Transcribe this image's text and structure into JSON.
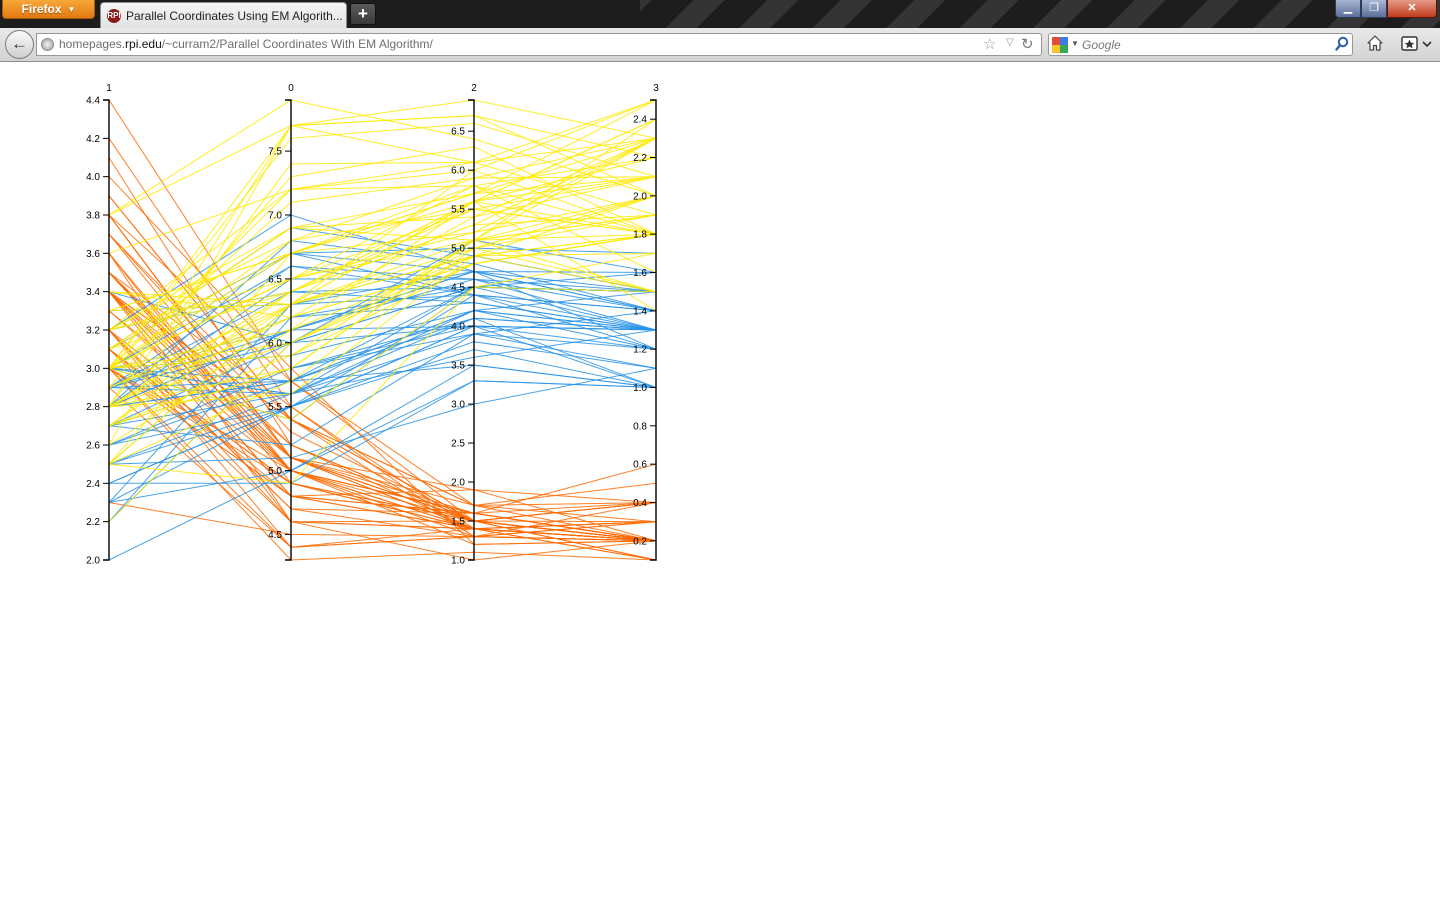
{
  "browser": {
    "menu_label": "Firefox",
    "tab": {
      "title": "Parallel Coordinates Using EM Algorith...",
      "favicon_text": "RPI"
    },
    "new_tab_label": "+",
    "window_controls": {
      "minimize": "▁",
      "maximize": "❐",
      "close": "✕"
    },
    "url": {
      "prefix": "homepages.",
      "host": "rpi.edu",
      "path": "/~curram2/Parallel Coordinates With EM Algorithm/"
    },
    "search": {
      "placeholder": "Google"
    },
    "icons": {
      "back": "back-arrow-icon",
      "identity": "globe-icon",
      "bookmark": "star-icon",
      "reload": "reload-icon",
      "search": "magnifier-icon",
      "home": "home-icon",
      "bookmarks": "bookmarks-icon"
    },
    "colors": {
      "titlebar": "#1d1d1d",
      "menu": "#e88a1e",
      "close": "#c13b1d"
    }
  },
  "chart_data": {
    "type": "parallel-coordinates",
    "axes": [
      {
        "label": "1",
        "min": 2.0,
        "max": 4.4,
        "ticks": [
          "2.0",
          "2.2",
          "2.4",
          "2.6",
          "2.8",
          "3.0",
          "3.2",
          "3.4",
          "3.6",
          "3.8",
          "4.0",
          "4.2",
          "4.4"
        ]
      },
      {
        "label": "0",
        "min": 4.3,
        "max": 7.9,
        "ticks": [
          "4.5",
          "5.0",
          "5.5",
          "6.0",
          "6.5",
          "7.0",
          "7.5"
        ]
      },
      {
        "label": "2",
        "min": 1.0,
        "max": 6.9,
        "ticks": [
          "1.0",
          "1.5",
          "2.0",
          "2.5",
          "3.0",
          "3.5",
          "4.0",
          "4.5",
          "5.0",
          "5.5",
          "6.0",
          "6.5"
        ]
      },
      {
        "label": "3",
        "min": 0.1,
        "max": 2.5,
        "ticks": [
          "0.2",
          "0.4",
          "0.6",
          "0.8",
          "1.0",
          "1.2",
          "1.4",
          "1.6",
          "1.8",
          "2.0",
          "2.2",
          "2.4"
        ]
      }
    ],
    "clusters": [
      {
        "color": "#ff6a00"
      },
      {
        "color": "#2893e8"
      },
      {
        "color": "#ffea00"
      }
    ],
    "records": [
      [
        3.5,
        5.1,
        1.4,
        0.2,
        0
      ],
      [
        3.0,
        4.9,
        1.4,
        0.2,
        0
      ],
      [
        3.2,
        4.7,
        1.3,
        0.2,
        0
      ],
      [
        3.1,
        4.6,
        1.5,
        0.2,
        0
      ],
      [
        3.6,
        5.0,
        1.4,
        0.2,
        0
      ],
      [
        3.9,
        5.4,
        1.7,
        0.4,
        0
      ],
      [
        3.4,
        4.6,
        1.4,
        0.3,
        0
      ],
      [
        3.4,
        5.0,
        1.5,
        0.2,
        0
      ],
      [
        2.9,
        4.4,
        1.4,
        0.2,
        0
      ],
      [
        3.1,
        4.9,
        1.5,
        0.1,
        0
      ],
      [
        3.7,
        5.4,
        1.5,
        0.2,
        0
      ],
      [
        3.4,
        4.8,
        1.6,
        0.2,
        0
      ],
      [
        3.0,
        4.8,
        1.4,
        0.1,
        0
      ],
      [
        3.0,
        4.3,
        1.1,
        0.1,
        0
      ],
      [
        4.0,
        5.8,
        1.2,
        0.2,
        0
      ],
      [
        4.4,
        5.7,
        1.5,
        0.4,
        0
      ],
      [
        3.9,
        5.4,
        1.3,
        0.4,
        0
      ],
      [
        3.5,
        5.1,
        1.4,
        0.3,
        0
      ],
      [
        3.8,
        5.7,
        1.7,
        0.3,
        0
      ],
      [
        3.8,
        5.1,
        1.5,
        0.3,
        0
      ],
      [
        3.4,
        5.4,
        1.7,
        0.2,
        0
      ],
      [
        3.7,
        5.1,
        1.5,
        0.4,
        0
      ],
      [
        3.6,
        4.6,
        1.0,
        0.2,
        0
      ],
      [
        3.3,
        5.1,
        1.7,
        0.5,
        0
      ],
      [
        3.4,
        4.8,
        1.9,
        0.2,
        0
      ],
      [
        3.0,
        5.0,
        1.6,
        0.2,
        0
      ],
      [
        3.4,
        5.0,
        1.6,
        0.4,
        0
      ],
      [
        3.5,
        5.2,
        1.5,
        0.2,
        0
      ],
      [
        3.4,
        5.2,
        1.4,
        0.2,
        0
      ],
      [
        3.2,
        4.7,
        1.6,
        0.2,
        0
      ],
      [
        3.1,
        4.8,
        1.6,
        0.2,
        0
      ],
      [
        3.4,
        5.4,
        1.5,
        0.4,
        0
      ],
      [
        4.1,
        5.2,
        1.5,
        0.1,
        0
      ],
      [
        4.2,
        5.5,
        1.4,
        0.2,
        0
      ],
      [
        3.1,
        4.9,
        1.5,
        0.2,
        0
      ],
      [
        3.2,
        5.0,
        1.2,
        0.2,
        0
      ],
      [
        3.5,
        5.5,
        1.3,
        0.2,
        0
      ],
      [
        3.6,
        4.9,
        1.4,
        0.1,
        0
      ],
      [
        3.0,
        4.4,
        1.3,
        0.2,
        0
      ],
      [
        3.4,
        5.1,
        1.5,
        0.2,
        0
      ],
      [
        3.5,
        5.0,
        1.3,
        0.3,
        0
      ],
      [
        2.3,
        4.5,
        1.3,
        0.3,
        0
      ],
      [
        3.2,
        4.4,
        1.3,
        0.2,
        0
      ],
      [
        3.5,
        5.0,
        1.6,
        0.6,
        0
      ],
      [
        3.8,
        5.1,
        1.9,
        0.4,
        0
      ],
      [
        3.0,
        4.8,
        1.4,
        0.3,
        0
      ],
      [
        3.8,
        5.1,
        1.6,
        0.2,
        0
      ],
      [
        3.2,
        4.6,
        1.4,
        0.2,
        0
      ],
      [
        3.7,
        5.3,
        1.5,
        0.2,
        0
      ],
      [
        3.3,
        5.0,
        1.4,
        0.2,
        0
      ],
      [
        3.2,
        7.0,
        4.7,
        1.4,
        1
      ],
      [
        3.2,
        6.4,
        4.5,
        1.5,
        1
      ],
      [
        3.1,
        6.9,
        4.9,
        1.5,
        1
      ],
      [
        2.3,
        5.5,
        4.0,
        1.3,
        1
      ],
      [
        2.8,
        6.5,
        4.6,
        1.5,
        1
      ],
      [
        2.8,
        5.7,
        4.5,
        1.3,
        1
      ],
      [
        3.3,
        6.3,
        4.7,
        1.6,
        1
      ],
      [
        2.4,
        4.9,
        3.3,
        1.0,
        1
      ],
      [
        2.9,
        6.6,
        4.6,
        1.3,
        1
      ],
      [
        2.7,
        5.2,
        3.9,
        1.4,
        1
      ],
      [
        2.0,
        5.0,
        3.5,
        1.0,
        1
      ],
      [
        3.0,
        5.9,
        4.2,
        1.5,
        1
      ],
      [
        2.2,
        6.0,
        4.0,
        1.0,
        1
      ],
      [
        2.9,
        6.1,
        4.7,
        1.4,
        1
      ],
      [
        2.9,
        5.6,
        3.6,
        1.3,
        1
      ],
      [
        3.1,
        6.7,
        4.4,
        1.4,
        1
      ],
      [
        3.0,
        5.6,
        4.5,
        1.5,
        1
      ],
      [
        2.7,
        5.8,
        4.1,
        1.0,
        1
      ],
      [
        2.2,
        6.2,
        4.5,
        1.5,
        1
      ],
      [
        2.5,
        5.6,
        3.9,
        1.1,
        1
      ],
      [
        2.8,
        6.1,
        4.0,
        1.3,
        1
      ],
      [
        2.5,
        6.3,
        4.9,
        1.5,
        1
      ],
      [
        2.8,
        6.1,
        4.7,
        1.2,
        1
      ],
      [
        2.9,
        6.4,
        4.3,
        1.3,
        1
      ],
      [
        3.0,
        6.6,
        4.4,
        1.4,
        1
      ],
      [
        2.8,
        6.8,
        4.8,
        1.4,
        1
      ],
      [
        3.0,
        6.7,
        5.0,
        1.7,
        1
      ],
      [
        2.9,
        6.0,
        4.5,
        1.5,
        1
      ],
      [
        2.6,
        5.7,
        3.5,
        1.0,
        1
      ],
      [
        2.4,
        5.5,
        3.8,
        1.1,
        1
      ],
      [
        2.4,
        5.5,
        3.7,
        1.0,
        1
      ],
      [
        2.7,
        5.8,
        3.9,
        1.2,
        1
      ],
      [
        2.7,
        6.0,
        5.1,
        1.6,
        1
      ],
      [
        3.0,
        5.4,
        4.5,
        1.5,
        1
      ],
      [
        3.4,
        6.0,
        4.5,
        1.6,
        1
      ],
      [
        3.1,
        6.7,
        4.7,
        1.5,
        1
      ],
      [
        2.3,
        6.3,
        4.4,
        1.3,
        1
      ],
      [
        3.0,
        5.6,
        4.1,
        1.3,
        1
      ],
      [
        2.5,
        5.5,
        4.0,
        1.3,
        1
      ],
      [
        2.6,
        5.5,
        4.4,
        1.2,
        1
      ],
      [
        3.0,
        6.1,
        4.6,
        1.4,
        1
      ],
      [
        2.6,
        5.8,
        4.0,
        1.2,
        1
      ],
      [
        2.3,
        5.0,
        3.3,
        1.0,
        1
      ],
      [
        2.7,
        5.6,
        4.2,
        1.3,
        1
      ],
      [
        3.0,
        5.7,
        4.2,
        1.2,
        1
      ],
      [
        2.9,
        5.7,
        4.2,
        1.3,
        1
      ],
      [
        2.9,
        6.2,
        4.3,
        1.3,
        1
      ],
      [
        2.5,
        5.1,
        3.0,
        1.1,
        1
      ],
      [
        2.8,
        5.7,
        4.1,
        1.3,
        1
      ],
      [
        3.3,
        6.3,
        6.0,
        2.5,
        2
      ],
      [
        2.7,
        5.8,
        5.1,
        1.9,
        2
      ],
      [
        3.0,
        7.1,
        5.9,
        2.1,
        2
      ],
      [
        2.9,
        6.3,
        5.6,
        1.8,
        2
      ],
      [
        3.0,
        6.5,
        5.8,
        2.2,
        2
      ],
      [
        3.0,
        7.6,
        6.6,
        2.1,
        2
      ],
      [
        2.5,
        4.9,
        4.5,
        1.7,
        2
      ],
      [
        2.9,
        7.3,
        6.3,
        1.8,
        2
      ],
      [
        2.5,
        6.7,
        5.8,
        1.8,
        2
      ],
      [
        3.6,
        7.2,
        6.1,
        2.5,
        2
      ],
      [
        3.2,
        6.5,
        5.1,
        2.0,
        2
      ],
      [
        2.7,
        6.4,
        5.3,
        1.9,
        2
      ],
      [
        3.0,
        6.8,
        5.5,
        2.1,
        2
      ],
      [
        2.5,
        5.7,
        5.0,
        2.0,
        2
      ],
      [
        2.8,
        5.8,
        5.1,
        2.4,
        2
      ],
      [
        3.2,
        6.4,
        5.3,
        2.3,
        2
      ],
      [
        3.0,
        6.5,
        5.5,
        1.8,
        2
      ],
      [
        3.8,
        7.7,
        6.7,
        2.2,
        2
      ],
      [
        2.6,
        7.7,
        6.9,
        2.3,
        2
      ],
      [
        2.2,
        6.0,
        5.0,
        1.5,
        2
      ],
      [
        3.2,
        6.9,
        5.7,
        2.3,
        2
      ],
      [
        2.8,
        5.6,
        4.9,
        2.0,
        2
      ],
      [
        2.8,
        7.7,
        6.7,
        2.0,
        2
      ],
      [
        2.7,
        6.3,
        4.9,
        1.8,
        2
      ],
      [
        3.3,
        6.7,
        5.7,
        2.1,
        2
      ],
      [
        3.2,
        7.2,
        6.0,
        1.8,
        2
      ],
      [
        2.8,
        6.2,
        4.8,
        1.8,
        2
      ],
      [
        3.0,
        6.1,
        4.9,
        1.8,
        2
      ],
      [
        2.8,
        6.4,
        5.6,
        2.1,
        2
      ],
      [
        3.0,
        7.2,
        5.8,
        1.6,
        2
      ],
      [
        2.8,
        7.4,
        6.1,
        1.9,
        2
      ],
      [
        3.8,
        7.9,
        6.4,
        2.0,
        2
      ],
      [
        2.8,
        6.4,
        5.6,
        2.2,
        2
      ],
      [
        2.8,
        6.3,
        5.1,
        1.5,
        2
      ],
      [
        2.6,
        6.1,
        5.6,
        1.4,
        2
      ],
      [
        3.0,
        7.7,
        6.1,
        2.3,
        2
      ],
      [
        3.4,
        6.3,
        5.6,
        2.4,
        2
      ],
      [
        3.1,
        6.4,
        5.5,
        1.8,
        2
      ],
      [
        3.0,
        6.0,
        4.8,
        1.8,
        2
      ],
      [
        3.1,
        6.9,
        5.4,
        2.1,
        2
      ],
      [
        3.1,
        6.7,
        5.6,
        2.4,
        2
      ],
      [
        3.1,
        6.9,
        5.1,
        2.3,
        2
      ],
      [
        2.7,
        5.8,
        5.1,
        1.9,
        2
      ],
      [
        3.2,
        6.8,
        5.9,
        2.3,
        2
      ],
      [
        3.3,
        6.7,
        5.7,
        2.5,
        2
      ],
      [
        3.0,
        6.7,
        5.2,
        2.3,
        2
      ],
      [
        2.5,
        6.3,
        5.0,
        1.9,
        2
      ],
      [
        3.0,
        6.5,
        5.2,
        2.0,
        2
      ],
      [
        3.4,
        6.2,
        5.4,
        2.3,
        2
      ],
      [
        3.0,
        5.9,
        5.1,
        1.8,
        2
      ],
      [
        2.7,
        5.9,
        4.8,
        1.8,
        2
      ],
      [
        2.8,
        6.0,
        4.9,
        1.7,
        2
      ],
      [
        2.5,
        6.3,
        4.9,
        1.5,
        2
      ],
      [
        3.0,
        5.4,
        4.5,
        1.5,
        2
      ],
      [
        2.9,
        6.2,
        4.8,
        1.8,
        2
      ]
    ]
  }
}
